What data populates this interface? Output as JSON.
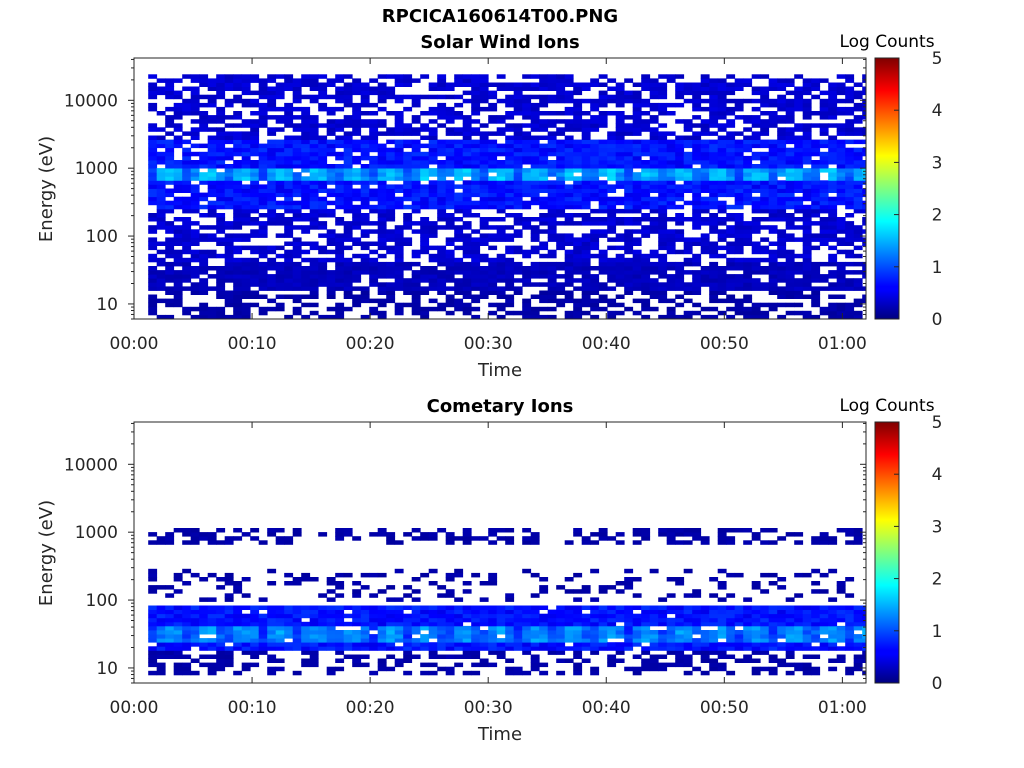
{
  "figure": {
    "title": "RPCICA160614T00.PNG"
  },
  "chart_data": [
    {
      "type": "heatmap",
      "title": "Solar Wind Ions",
      "xlabel": "Time",
      "ylabel": "Energy (eV)",
      "x_ticks": [
        "00:00",
        "00:10",
        "00:20",
        "00:30",
        "00:40",
        "00:50",
        "01:00"
      ],
      "x_range_minutes": [
        0,
        62
      ],
      "y_ticks": [
        "10",
        "100",
        "1000",
        "10000"
      ],
      "y_scale": "log",
      "y_range": [
        6,
        42000
      ],
      "colorbar_label": "Log Counts",
      "colorbar_ticks": [
        "0",
        "1",
        "2",
        "3",
        "4",
        "5"
      ],
      "colorbar_range": [
        0,
        5
      ],
      "colormap": "jet",
      "bands": [
        {
          "energy_range": [
            40,
            25000
          ],
          "log_counts": 0.4,
          "coverage": 0.62
        },
        {
          "energy_range": [
            250,
            2500
          ],
          "log_counts": 0.7,
          "coverage": 0.9
        },
        {
          "energy_range": [
            650,
            950
          ],
          "log_counts": 1.6,
          "coverage": 0.95
        },
        {
          "energy_range": [
            15,
            70
          ],
          "log_counts": 0.3,
          "coverage": 0.85
        },
        {
          "energy_range": [
            6,
            15
          ],
          "log_counts": 0.2,
          "coverage": 0.5
        }
      ],
      "data_start_minute": 1.2,
      "data_end_minute": 62
    },
    {
      "type": "heatmap",
      "title": "Cometary Ions",
      "xlabel": "Time",
      "ylabel": "Energy (eV)",
      "x_ticks": [
        "00:00",
        "00:10",
        "00:20",
        "00:30",
        "00:40",
        "00:50",
        "01:00"
      ],
      "x_range_minutes": [
        0,
        62
      ],
      "y_ticks": [
        "10",
        "100",
        "1000",
        "10000"
      ],
      "y_scale": "log",
      "y_range": [
        6,
        42000
      ],
      "colorbar_label": "Log Counts",
      "colorbar_ticks": [
        "0",
        "1",
        "2",
        "3",
        "4",
        "5"
      ],
      "colorbar_range": [
        0,
        5
      ],
      "colormap": "jet",
      "bands": [
        {
          "energy_range": [
            700,
            1100
          ],
          "log_counts": 0.2,
          "coverage": 0.45
        },
        {
          "energy_range": [
            100,
            300
          ],
          "log_counts": 0.2,
          "coverage": 0.22
        },
        {
          "energy_range": [
            18,
            80
          ],
          "log_counts": 0.7,
          "coverage": 0.97
        },
        {
          "energy_range": [
            25,
            40
          ],
          "log_counts": 1.4,
          "coverage": 0.9
        },
        {
          "energy_range": [
            8,
            18
          ],
          "log_counts": 0.2,
          "coverage": 0.45
        }
      ],
      "data_start_minute": 1.2,
      "data_end_minute": 62
    }
  ]
}
